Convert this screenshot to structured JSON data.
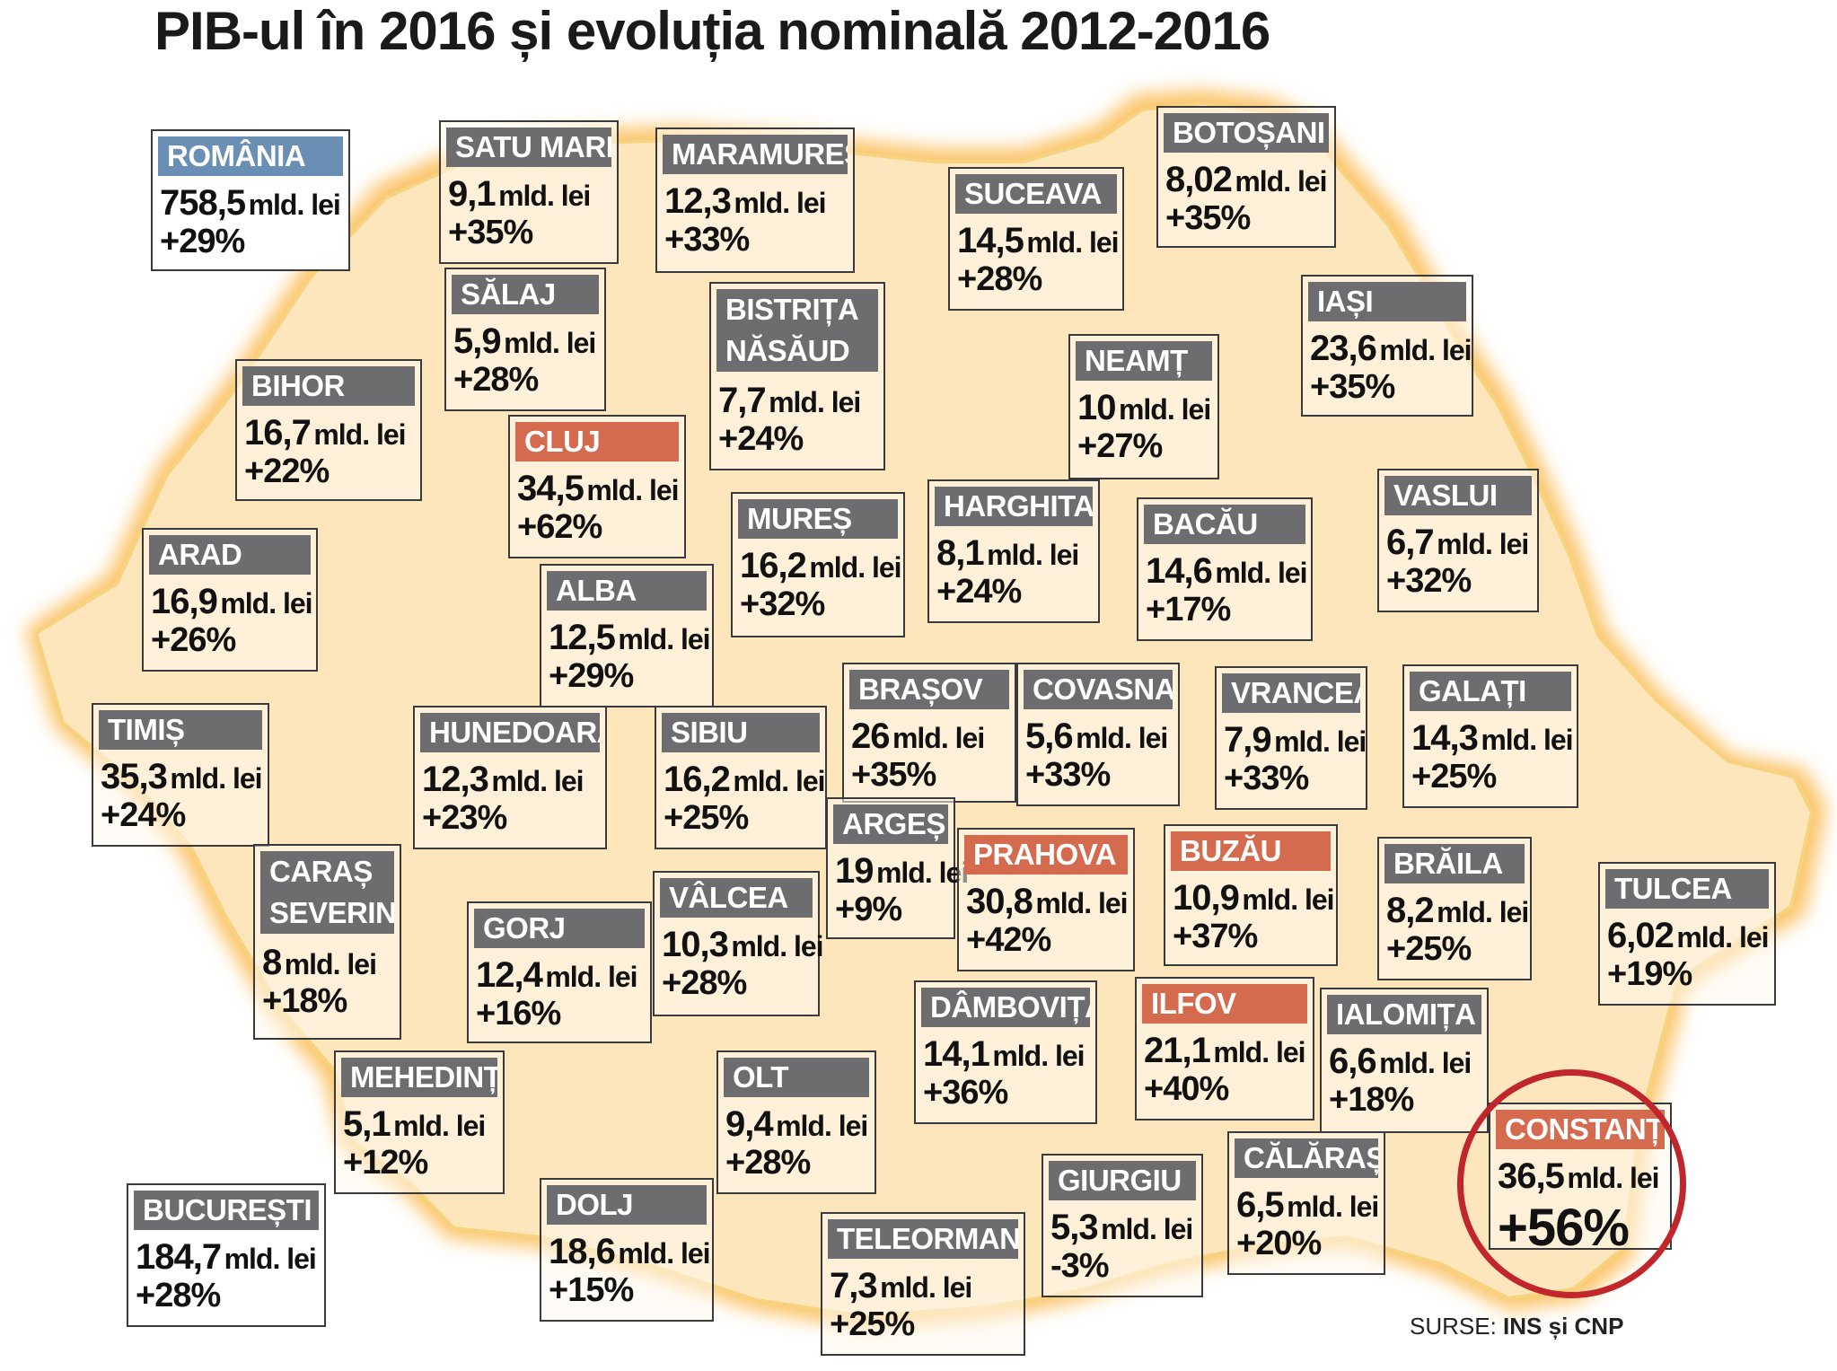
{
  "title": "PIB-ul în 2016 și evoluția nominală 2012-2016",
  "source": {
    "prefix": "SURSE:",
    "names": "INS și CNP"
  },
  "unit": "mld. lei",
  "colors": {
    "gray": "#6d6d6f",
    "blue": "#6a8fb5",
    "orange": "#d46a4e",
    "map": "#fde5bc",
    "glow": "#fbc56a",
    "ring": "#c0262b"
  },
  "regions": [
    {
      "name": "ROMÂNIA",
      "value": "758,5",
      "change": "+29%",
      "color": "blue"
    },
    {
      "name": "SATU MARE",
      "value": "9,1",
      "change": "+35%",
      "color": "gray"
    },
    {
      "name": "MARAMUREȘ",
      "value": "12,3",
      "change": "+33%",
      "color": "gray"
    },
    {
      "name": "BOTOȘANI",
      "value": "8,02",
      "change": "+35%",
      "color": "gray"
    },
    {
      "name": "SUCEAVA",
      "value": "14,5",
      "change": "+28%",
      "color": "gray"
    },
    {
      "name": "SĂLAJ",
      "value": "5,9",
      "change": "+28%",
      "color": "gray"
    },
    {
      "name": "BISTRIȚA NĂSĂUD",
      "value": "7,7",
      "change": "+24%",
      "color": "gray"
    },
    {
      "name": "IAȘI",
      "value": "23,6",
      "change": "+35%",
      "color": "gray"
    },
    {
      "name": "BIHOR",
      "value": "16,7",
      "change": "+22%",
      "color": "gray"
    },
    {
      "name": "NEAMȚ",
      "value": "10",
      "change": "+27%",
      "color": "gray"
    },
    {
      "name": "CLUJ",
      "value": "34,5",
      "change": "+62%",
      "color": "orange"
    },
    {
      "name": "MUREȘ",
      "value": "16,2",
      "change": "+32%",
      "color": "gray"
    },
    {
      "name": "HARGHITA",
      "value": "8,1",
      "change": "+24%",
      "color": "gray"
    },
    {
      "name": "BACĂU",
      "value": "14,6",
      "change": "+17%",
      "color": "gray"
    },
    {
      "name": "VASLUI",
      "value": "6,7",
      "change": "+32%",
      "color": "gray"
    },
    {
      "name": "ARAD",
      "value": "16,9",
      "change": "+26%",
      "color": "gray"
    },
    {
      "name": "ALBA",
      "value": "12,5",
      "change": "+29%",
      "color": "gray"
    },
    {
      "name": "BRAȘOV",
      "value": "26",
      "change": "+35%",
      "color": "gray"
    },
    {
      "name": "COVASNA",
      "value": "5,6",
      "change": "+33%",
      "color": "gray"
    },
    {
      "name": "VRANCEA",
      "value": "7,9",
      "change": "+33%",
      "color": "gray"
    },
    {
      "name": "GALAȚI",
      "value": "14,3",
      "change": "+25%",
      "color": "gray"
    },
    {
      "name": "TIMIȘ",
      "value": "35,3",
      "change": "+24%",
      "color": "gray"
    },
    {
      "name": "HUNEDOARA",
      "value": "12,3",
      "change": "+23%",
      "color": "gray"
    },
    {
      "name": "SIBIU",
      "value": "16,2",
      "change": "+25%",
      "color": "gray"
    },
    {
      "name": "ARGEȘ",
      "value": "19",
      "change": "+9%",
      "color": "gray"
    },
    {
      "name": "PRAHOVA",
      "value": "30,8",
      "change": "+42%",
      "color": "orange"
    },
    {
      "name": "BUZĂU",
      "value": "10,9",
      "change": "+37%",
      "color": "orange"
    },
    {
      "name": "BRĂILA",
      "value": "8,2",
      "change": "+25%",
      "color": "gray"
    },
    {
      "name": "TULCEA",
      "value": "6,02",
      "change": "+19%",
      "color": "gray"
    },
    {
      "name": "CARAȘ SEVERIN",
      "value": "8",
      "change": "+18%",
      "color": "gray"
    },
    {
      "name": "GORJ",
      "value": "12,4",
      "change": "+16%",
      "color": "gray"
    },
    {
      "name": "VÂLCEA",
      "value": "10,3",
      "change": "+28%",
      "color": "gray"
    },
    {
      "name": "DÂMBOVIȚA",
      "value": "14,1",
      "change": "+36%",
      "color": "gray"
    },
    {
      "name": "ILFOV",
      "value": "21,1",
      "change": "+40%",
      "color": "orange"
    },
    {
      "name": "IALOMIȚA",
      "value": "6,6",
      "change": "+18%",
      "color": "gray"
    },
    {
      "name": "MEHEDINȚI",
      "value": "5,1",
      "change": "+12%",
      "color": "gray"
    },
    {
      "name": "OLT",
      "value": "9,4",
      "change": "+28%",
      "color": "gray"
    },
    {
      "name": "CONSTANȚA",
      "value": "36,5",
      "change": "+56%",
      "color": "orange"
    },
    {
      "name": "GIURGIU",
      "value": "5,3",
      "change": "-3%",
      "color": "gray"
    },
    {
      "name": "CĂLĂRAȘI",
      "value": "6,5",
      "change": "+20%",
      "color": "gray"
    },
    {
      "name": "BUCUREȘTI",
      "value": "184,7",
      "change": "+28%",
      "color": "gray"
    },
    {
      "name": "DOLJ",
      "value": "18,6",
      "change": "+15%",
      "color": "gray"
    },
    {
      "name": "TELEORMAN",
      "value": "7,3",
      "change": "+25%",
      "color": "gray"
    }
  ]
}
